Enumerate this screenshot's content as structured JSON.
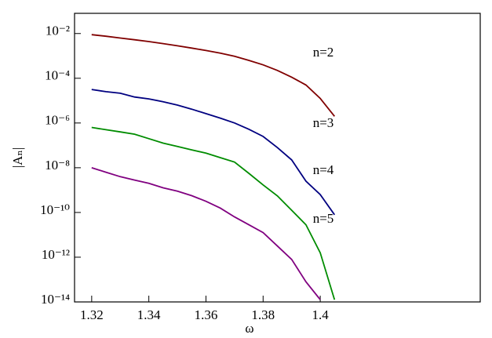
{
  "chart_data": {
    "type": "line",
    "x_label": "ω",
    "y_label": "|Aₙ|",
    "x": [
      1.32,
      1.325,
      1.33,
      1.335,
      1.34,
      1.345,
      1.35,
      1.355,
      1.36,
      1.365,
      1.37,
      1.375,
      1.38,
      1.385,
      1.39,
      1.395,
      1.4,
      1.405
    ],
    "series": [
      {
        "name": "n=2",
        "color": "#800000",
        "values": [
          0.00891,
          0.00759,
          0.00631,
          0.00525,
          0.00437,
          0.00355,
          0.00282,
          0.00224,
          0.00174,
          0.00132,
          0.000955,
          0.000631,
          0.000398,
          0.000224,
          0.000112,
          5.01e-05,
          1.26e-05,
          2e-06
        ]
      },
      {
        "name": "n=3",
        "color": "#000080",
        "values": [
          3.16e-05,
          2.51e-05,
          2.14e-05,
          1.45e-05,
          1.2e-05,
          8.91e-06,
          6.31e-06,
          4.17e-06,
          2.63e-06,
          1.66e-06,
          1e-06,
          5.25e-07,
          2.51e-07,
          7.94e-08,
          2.24e-08,
          2.51e-09,
          6.31e-10,
          7.94e-11
        ]
      },
      {
        "name": "n=4",
        "color": "#008c00",
        "values": [
          6.31e-07,
          5.01e-07,
          3.98e-07,
          3.16e-07,
          2e-07,
          1.26e-07,
          8.91e-08,
          6.31e-08,
          4.47e-08,
          2.82e-08,
          1.78e-08,
          5.62e-09,
          1.7e-09,
          5.5e-10,
          1.26e-10,
          2.82e-11,
          1.58e-12,
          1.26e-14
        ]
      },
      {
        "name": "n=5",
        "color": "#800080",
        "values": [
          1e-08,
          6.31e-09,
          3.98e-09,
          2.82e-09,
          2e-09,
          1.26e-09,
          8.91e-10,
          5.62e-10,
          3.16e-10,
          1.58e-10,
          6.31e-11,
          2.82e-11,
          1.26e-11,
          3.16e-12,
          7.94e-13,
          7.94e-14,
          1.26e-14,
          null
        ]
      }
    ],
    "xlim": [
      1.314,
      1.456
    ],
    "xticks": [
      1.32,
      1.34,
      1.36,
      1.38,
      1.4
    ],
    "ylim": [
      1e-14,
      0.08
    ],
    "yticks": [
      {
        "value": 1e-14,
        "label": "10⁻¹⁴"
      },
      {
        "value": 1e-12,
        "label": "10⁻¹²"
      },
      {
        "value": 1e-10,
        "label": "10⁻¹⁰"
      },
      {
        "value": 1e-08,
        "label": "10⁻⁸"
      },
      {
        "value": 1e-06,
        "label": "10⁻⁶"
      },
      {
        "value": 0.0001,
        "label": "10⁻⁴"
      },
      {
        "value": 0.01,
        "label": "10⁻²"
      }
    ],
    "y_log": true,
    "grid": false
  }
}
